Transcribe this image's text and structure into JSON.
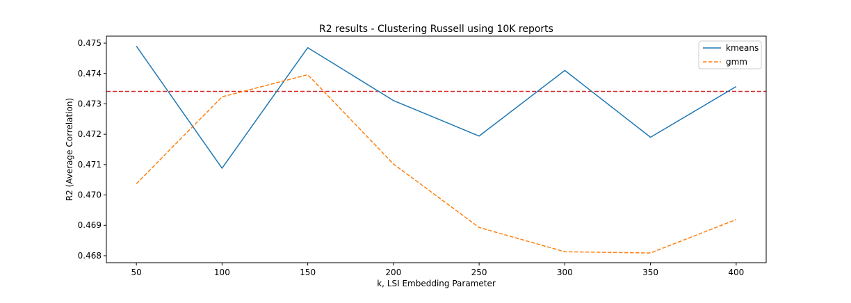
{
  "chart_data": {
    "type": "line",
    "title": "R2 results - Clustering Russell using 10K reports",
    "xlabel": "k, LSI Embedding Parameter",
    "ylabel": "R2 (Average Correlation)",
    "x": [
      50,
      100,
      150,
      200,
      250,
      300,
      350,
      400
    ],
    "xticks": [
      50,
      100,
      150,
      200,
      250,
      300,
      350,
      400
    ],
    "xtick_labels": [
      "50",
      "100",
      "150",
      "200",
      "250",
      "300",
      "350",
      "400"
    ],
    "yticks": [
      0.468,
      0.469,
      0.47,
      0.471,
      0.472,
      0.473,
      0.474,
      0.475
    ],
    "ytick_labels": [
      "0.468",
      "0.469",
      "0.470",
      "0.471",
      "0.472",
      "0.473",
      "0.474",
      "0.475"
    ],
    "xlim": [
      32.5,
      417.5
    ],
    "ylim": [
      0.46777,
      0.47523
    ],
    "grid": false,
    "legend_position": "top-right",
    "series": [
      {
        "name": "kmeans",
        "style": "solid",
        "color": "#1f77b4",
        "values": [
          0.4749,
          0.47088,
          0.47485,
          0.47311,
          0.47194,
          0.4741,
          0.4719,
          0.47357
        ]
      },
      {
        "name": "gmm",
        "style": "dashed",
        "color": "#ff7f0e",
        "values": [
          0.47037,
          0.47323,
          0.47396,
          0.47102,
          0.46893,
          0.46813,
          0.46809,
          0.46919
        ]
      }
    ],
    "reference_line": {
      "orientation": "horizontal",
      "value": 0.47341,
      "style": "dashed",
      "color": "#d62728"
    }
  }
}
